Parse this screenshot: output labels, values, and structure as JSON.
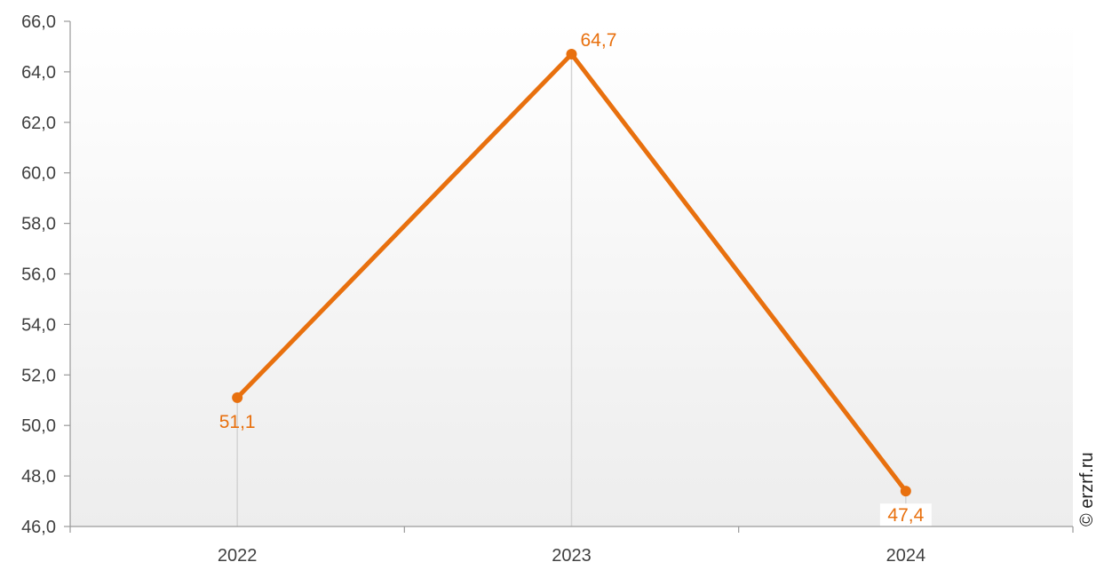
{
  "chart_data": {
    "type": "line",
    "categories": [
      "2022",
      "2023",
      "2024"
    ],
    "series": [
      {
        "values": [
          51.1,
          64.7,
          47.4
        ],
        "labels": [
          "51,1",
          "64,7",
          "47,4"
        ]
      }
    ],
    "ylim": [
      46.0,
      66.0
    ],
    "yticks": [
      "46,0",
      "48,0",
      "50,0",
      "52,0",
      "54,0",
      "56,0",
      "58,0",
      "60,0",
      "62,0",
      "64,0",
      "66,0"
    ],
    "xlabel": "",
    "ylabel": "",
    "title": "",
    "grid": false,
    "legend": "none",
    "colors": {
      "line": "#E8700E",
      "axis": "#9a9a9a",
      "guide": "#d3d3d3",
      "bg_top": "#ffffff",
      "bg_bottom": "#ededed"
    }
  },
  "watermark": "© erzrf.ru"
}
